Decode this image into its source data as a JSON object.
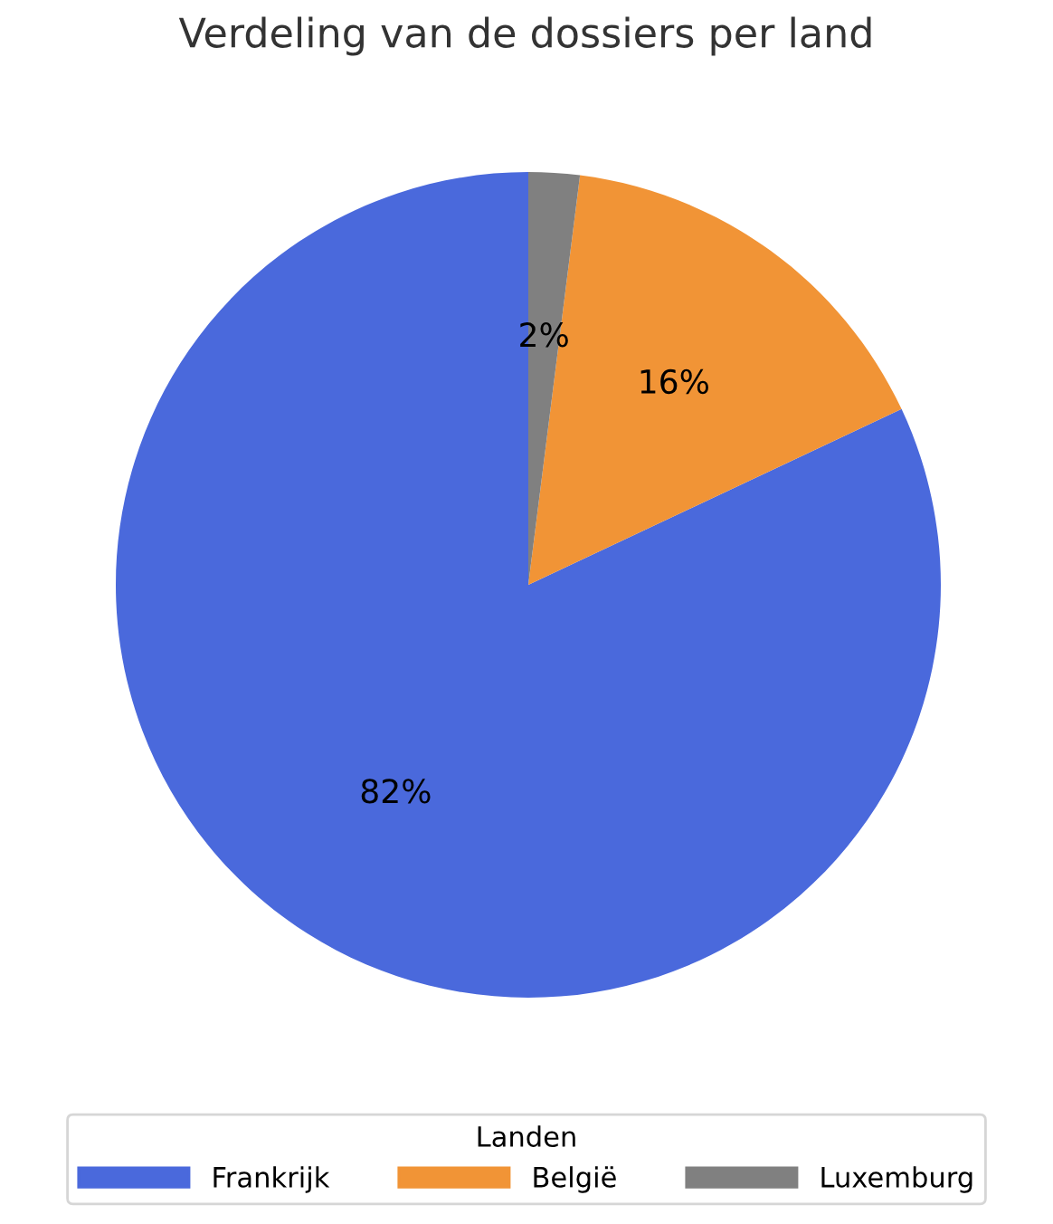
{
  "chart_data": {
    "type": "pie",
    "title": "Verdeling van de dossiers per land",
    "legend_title": "Landen",
    "legend": "bottom",
    "categories": [
      "Frankrijk",
      "België",
      "Luxemburg"
    ],
    "values": [
      82,
      16,
      2
    ],
    "colors": [
      "#4a69dc",
      "#f19436",
      "#808080"
    ],
    "value_labels": [
      "82%",
      "16%",
      "2%"
    ]
  }
}
